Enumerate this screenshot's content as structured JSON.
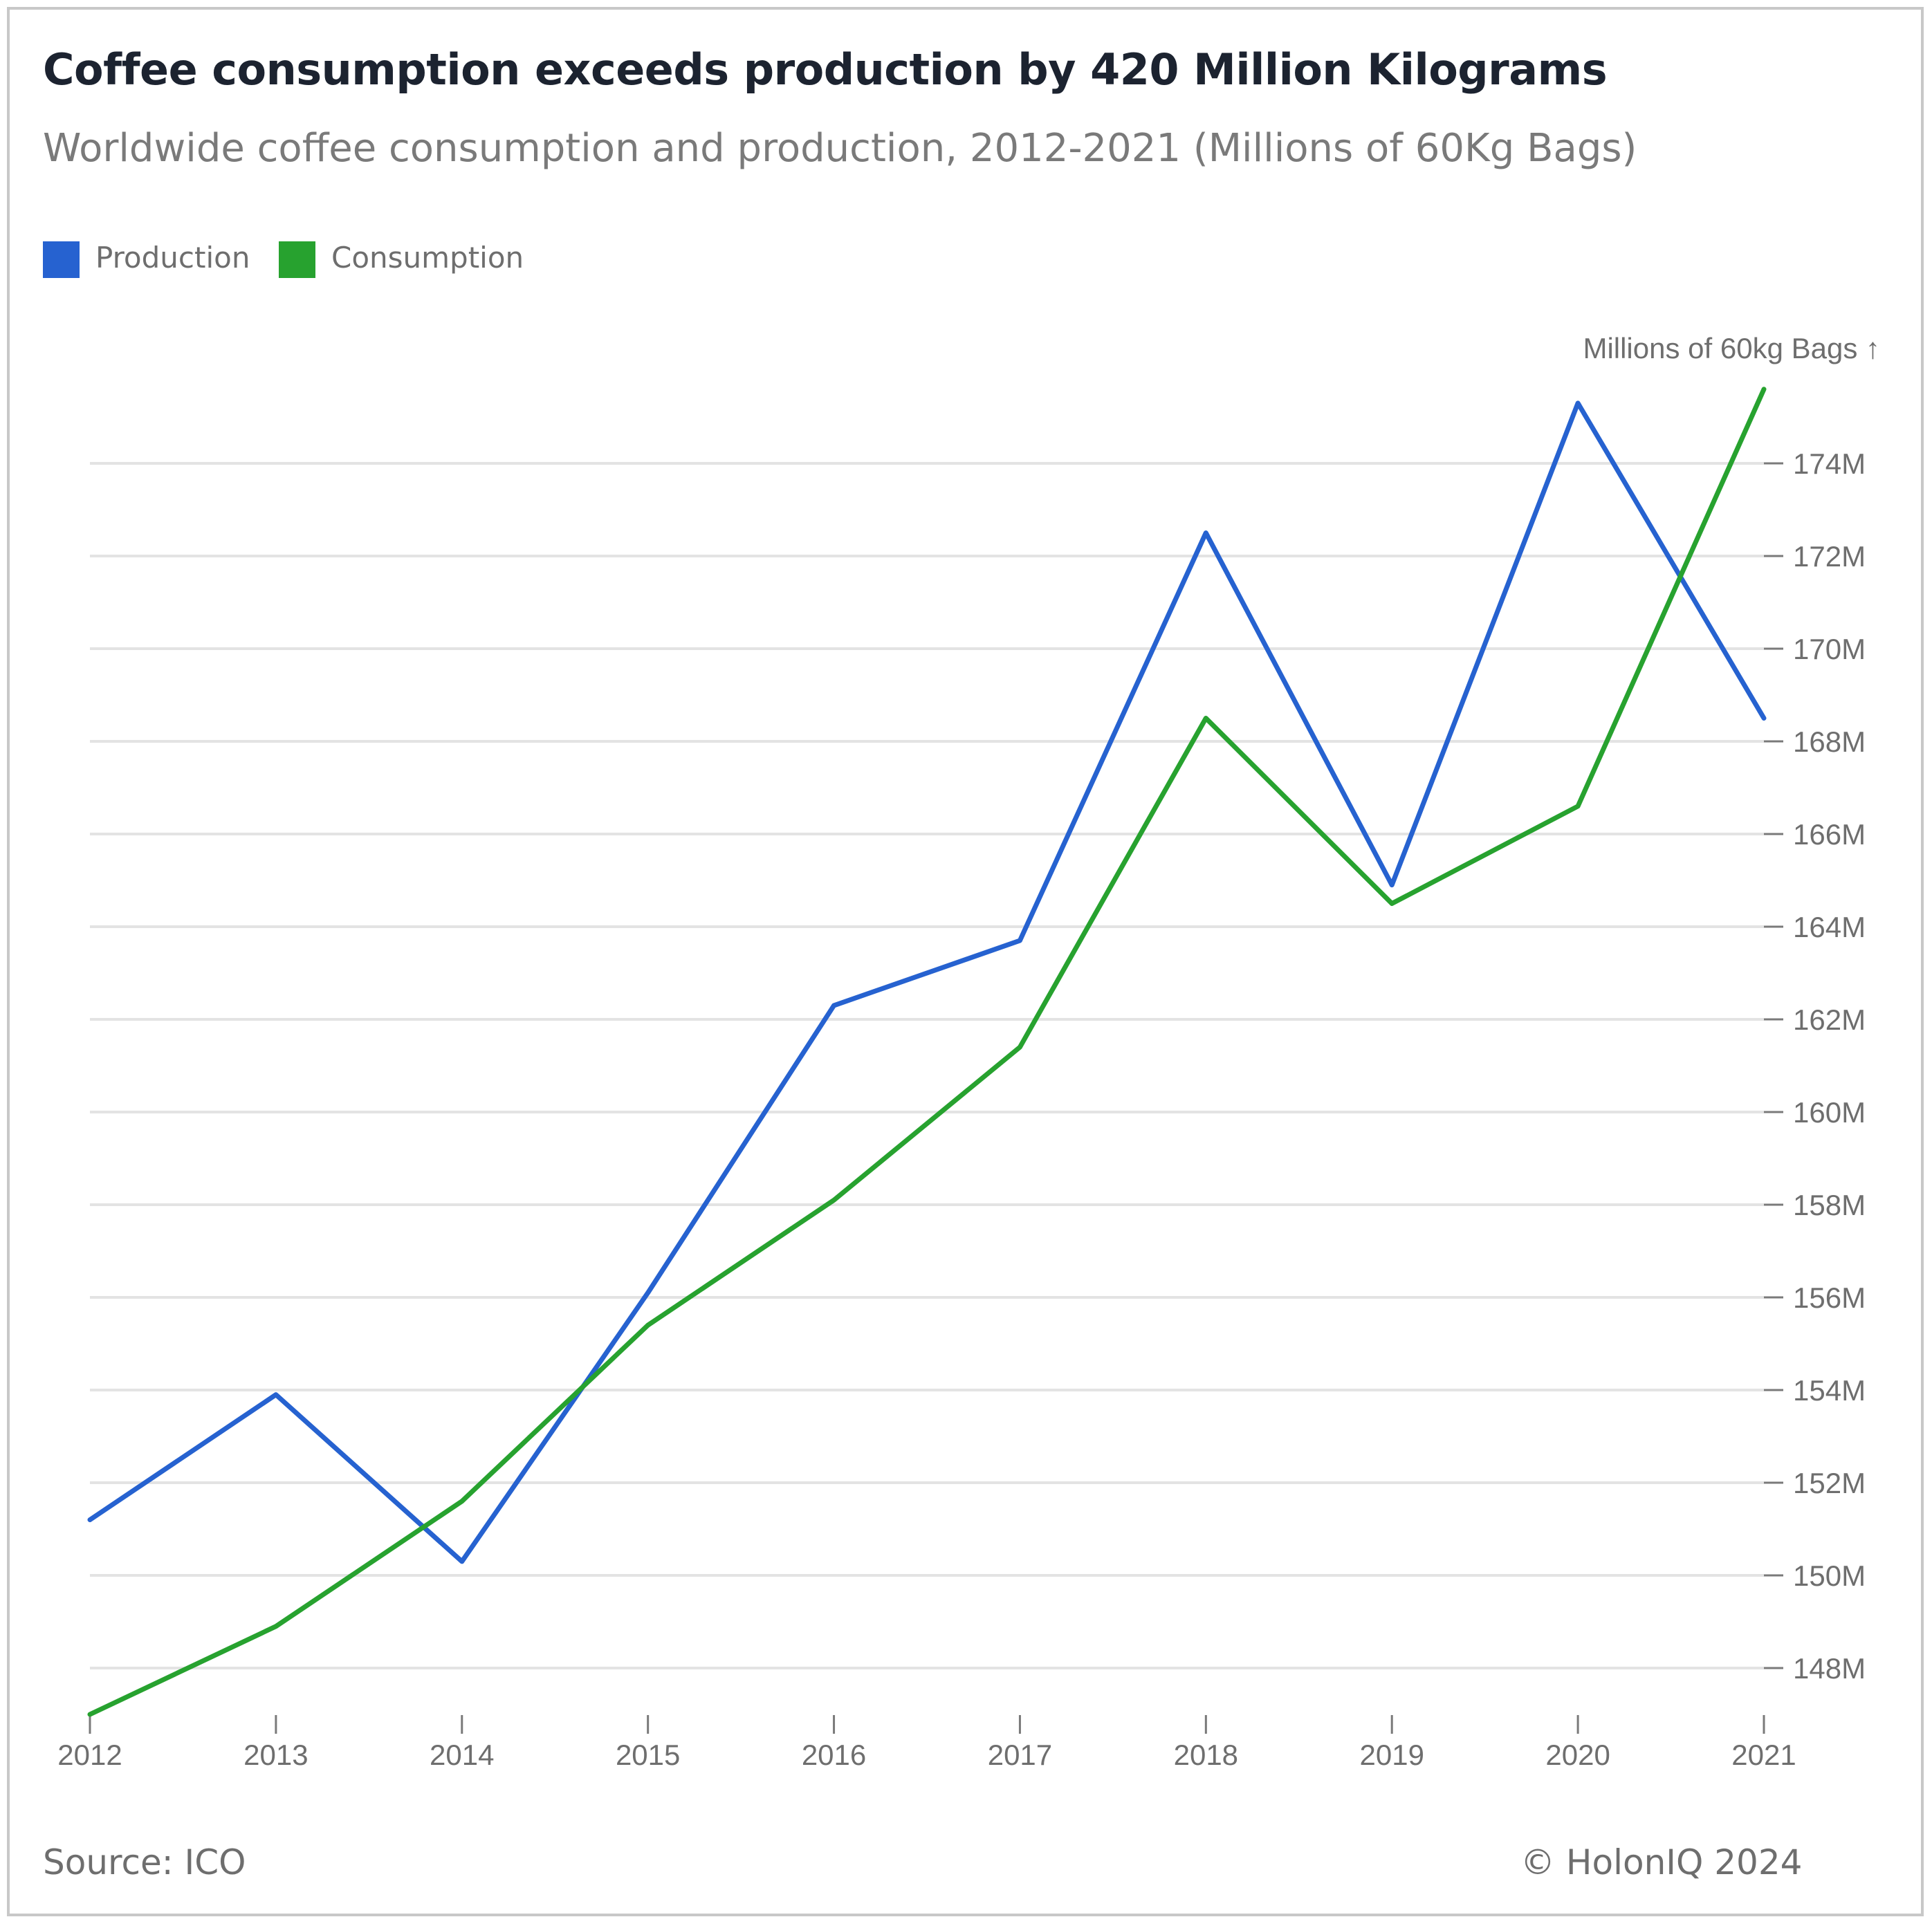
{
  "header": {
    "title": "Coffee consumption exceeds production by 420 Million Kilograms",
    "subtitle": "Worldwide coffee consumption and production, 2012-2021 (Millions of 60Kg Bags)"
  },
  "legend": [
    {
      "label": "Production",
      "color": "#2662d0"
    },
    {
      "label": "Consumption",
      "color": "#27a22f"
    }
  ],
  "footer": {
    "source": "Source: ICO",
    "copyright": "© HolonIQ 2024"
  },
  "chart_data": {
    "type": "line",
    "x": [
      "2012",
      "2013",
      "2014",
      "2015",
      "2016",
      "2017",
      "2018",
      "2019",
      "2020",
      "2021"
    ],
    "series": [
      {
        "name": "Production",
        "color": "#2662d0",
        "values": [
          151.2,
          153.9,
          150.3,
          156.1,
          162.3,
          163.7,
          172.5,
          164.9,
          175.3,
          168.5
        ]
      },
      {
        "name": "Consumption",
        "color": "#27a22f",
        "values": [
          147.0,
          148.9,
          151.6,
          155.4,
          158.1,
          161.4,
          168.5,
          164.5,
          166.6,
          175.6
        ]
      }
    ],
    "ylabel": "Millions of 60kg Bags ↑",
    "yticks": [
      148,
      150,
      152,
      154,
      156,
      158,
      160,
      162,
      164,
      166,
      168,
      170,
      172,
      174
    ],
    "ytick_suffix": "M",
    "ylim": [
      147,
      175.6
    ],
    "grid": true,
    "y_axis_position": "right",
    "legend_position": "top-left"
  }
}
